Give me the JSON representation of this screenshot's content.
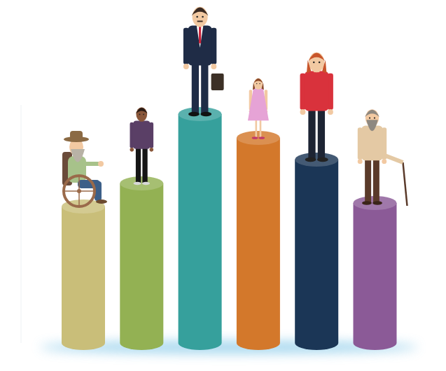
{
  "chart_data": {
    "type": "bar",
    "categories": [
      null,
      null,
      null,
      null,
      null,
      null
    ],
    "values": [
      195,
      228,
      327,
      293,
      262,
      200
    ],
    "colors": [
      "#c9be79",
      "#93b153",
      "#36a09c",
      "#d3782b",
      "#1b3656",
      "#8b5a97"
    ],
    "ylim": [
      0,
      340
    ],
    "tick_labels": false
  }
}
